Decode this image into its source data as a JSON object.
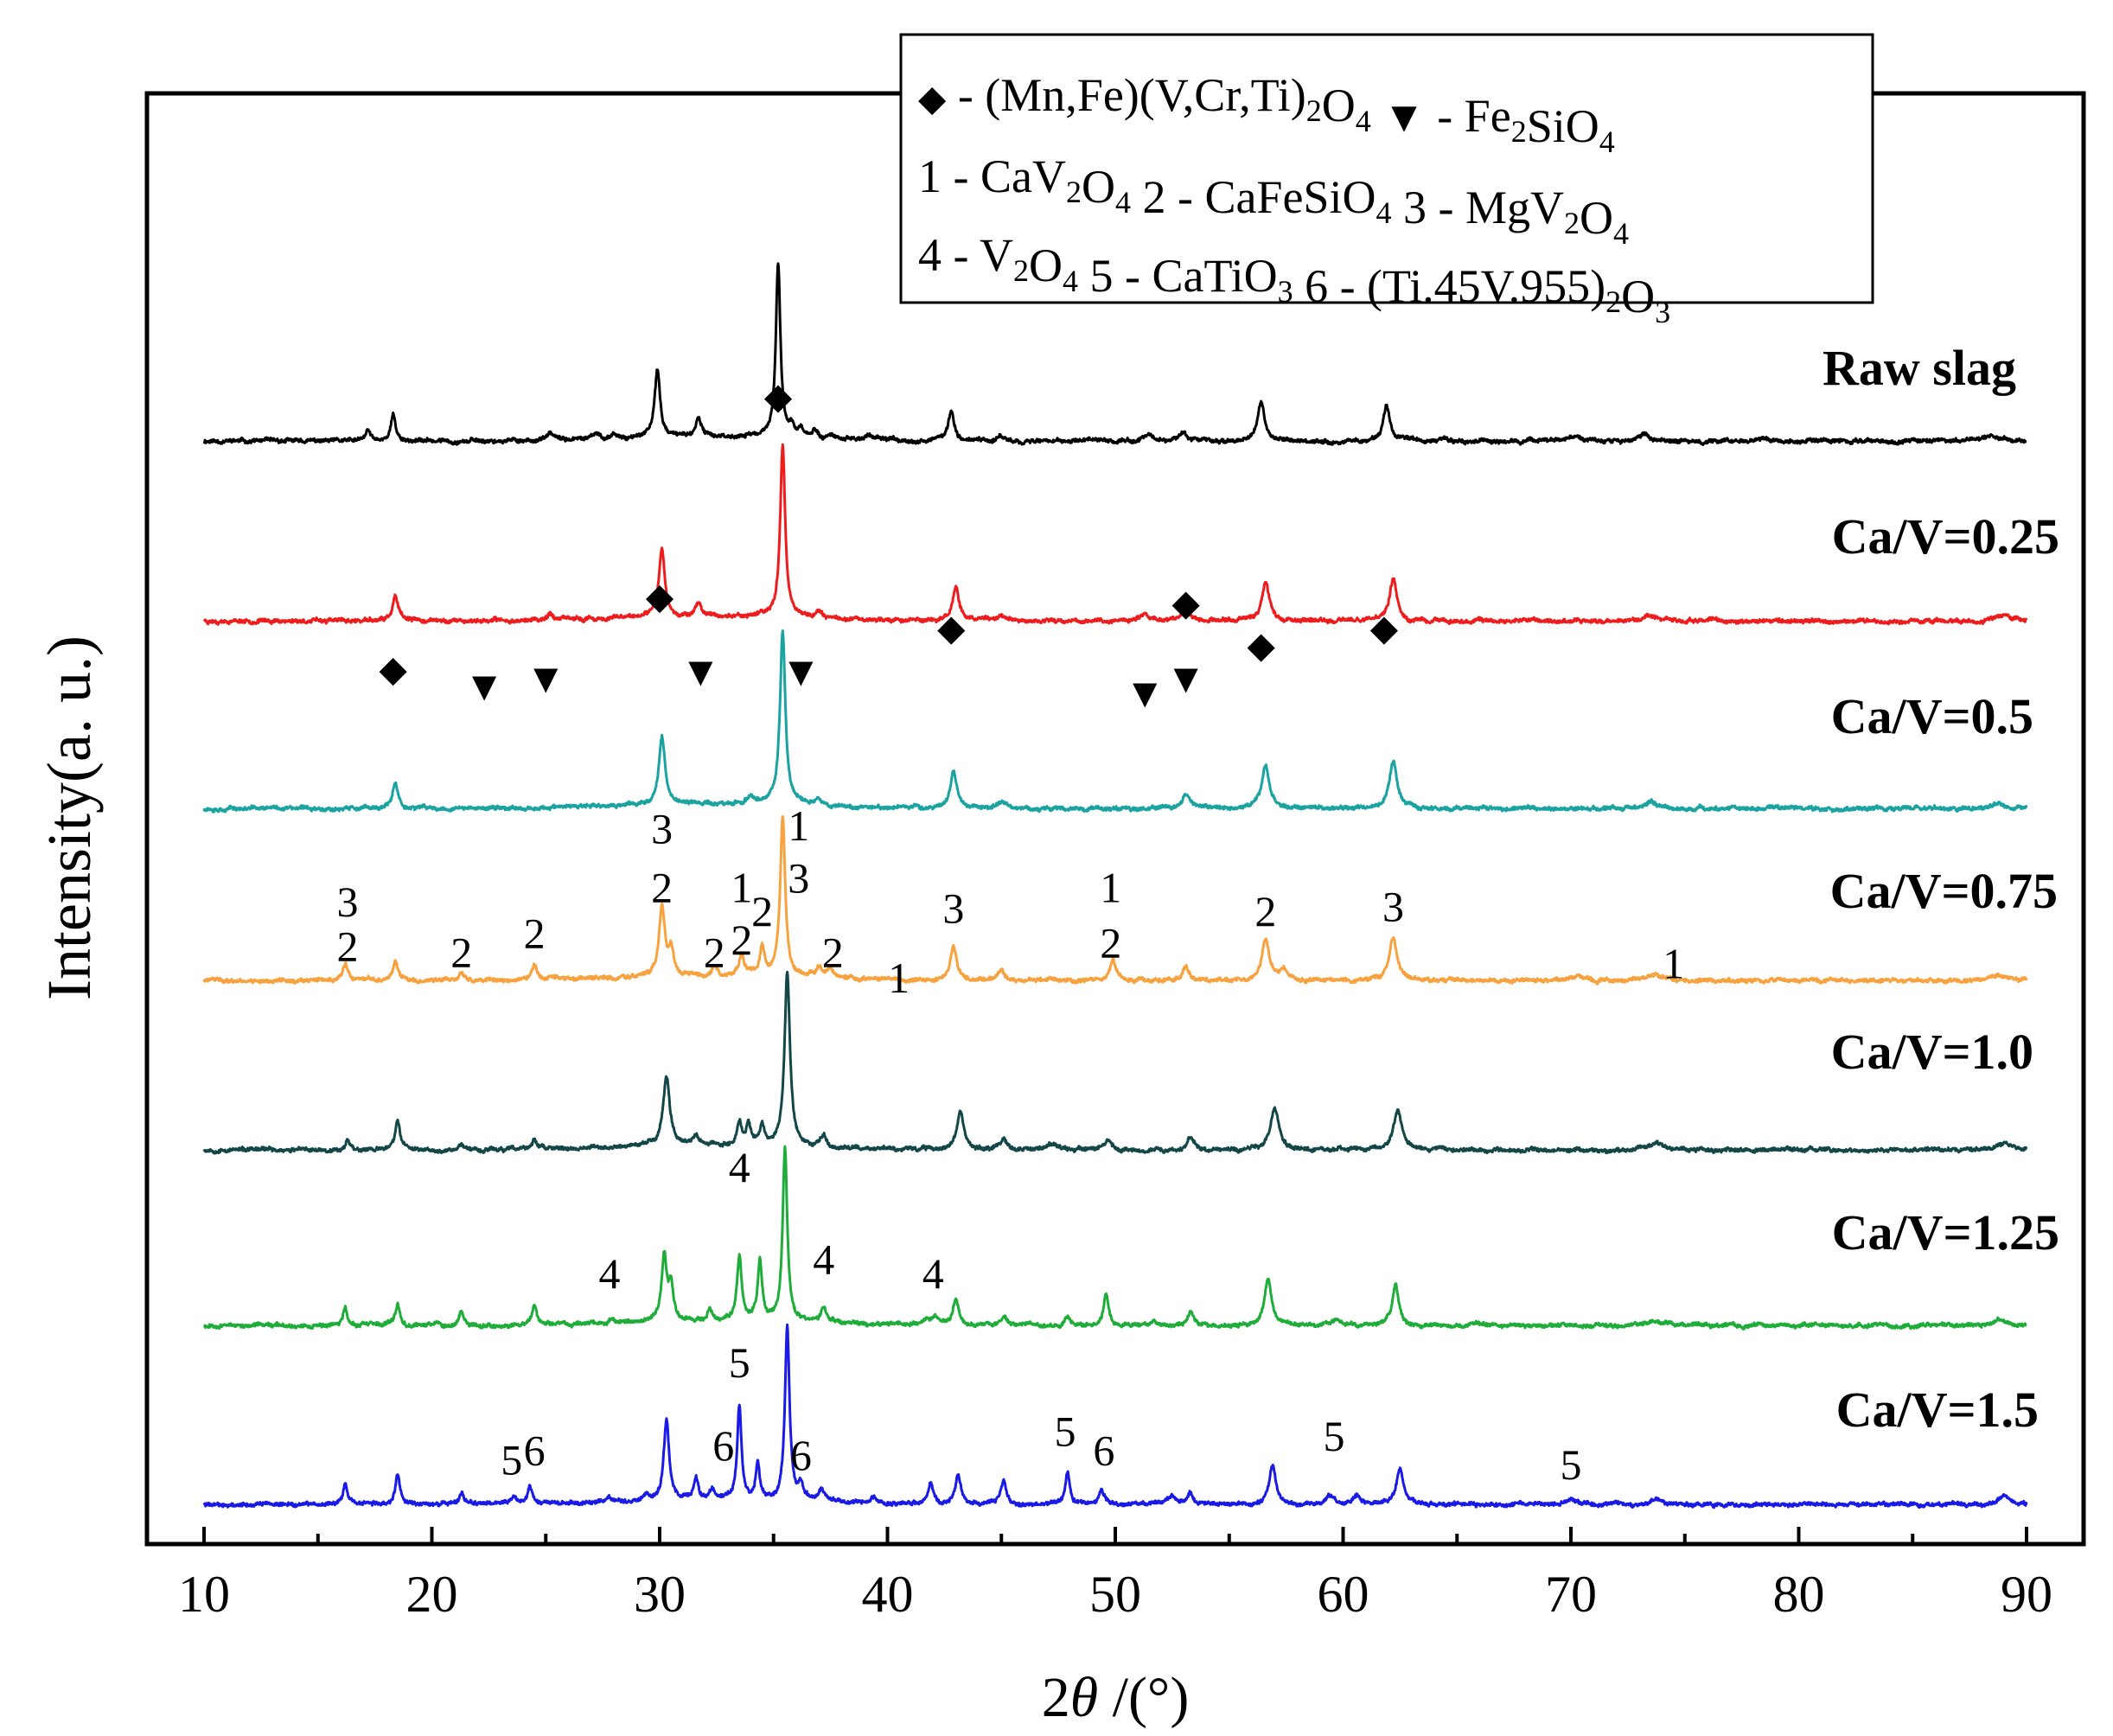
{
  "chart_data": {
    "type": "line",
    "xlabel_prefix": "2",
    "xlabel_theta": "θ",
    "xlabel_suffix": " /(°)",
    "ylabel": "Intensity(a. u.)",
    "xlim": [
      10,
      90
    ],
    "x_ticks": [
      "10",
      "20",
      "30",
      "40",
      "50",
      "60",
      "70",
      "80",
      "90"
    ],
    "legend": {
      "lines": [
        [
          {
            "sym": "◆",
            "t": " - (Mn,Fe)(V,Cr,Ti)"
          },
          {
            "sub": "2"
          },
          {
            "t": "O"
          },
          {
            "sub": "4"
          },
          {
            "t": " "
          },
          {
            "sym": "▼",
            "t": " -  Fe"
          },
          {
            "sub": "2"
          },
          {
            "t": "SiO"
          },
          {
            "sub": "4"
          }
        ],
        [
          {
            "t": "1 - CaV"
          },
          {
            "sub": "2"
          },
          {
            "t": "O"
          },
          {
            "sub": "4"
          },
          {
            "t": " 2 - CaFeSiO"
          },
          {
            "sub": "4"
          },
          {
            "t": " 3 - MgV"
          },
          {
            "sub": "2"
          },
          {
            "t": "O"
          },
          {
            "sub": "4"
          }
        ],
        [
          {
            "t": "4 - V"
          },
          {
            "sub": "2"
          },
          {
            "t": "O"
          },
          {
            "sub": "4"
          },
          {
            "t": "  5 - CaTiO"
          },
          {
            "sub": "3"
          },
          {
            "t": " 6 - (Ti.45V.955)"
          },
          {
            "sub": "2"
          },
          {
            "t": "O"
          },
          {
            "sub": "3"
          }
        ]
      ]
    },
    "series": [
      {
        "name": "Raw slag",
        "color": "#000000",
        "baseline_frac": 0.192,
        "noise_seed": 11,
        "peaks": [
          [
            17.2,
            12,
            0.12
          ],
          [
            18.3,
            30,
            0.13
          ],
          [
            25.2,
            8,
            0.15
          ],
          [
            27.2,
            6,
            0.15
          ],
          [
            28.0,
            6,
            0.15
          ],
          [
            29.9,
            78,
            0.14
          ],
          [
            31.7,
            20,
            0.14
          ],
          [
            35.2,
            200,
            0.12
          ],
          [
            35.8,
            12,
            0.12
          ],
          [
            36.2,
            10,
            0.12
          ],
          [
            36.8,
            8,
            0.12
          ],
          [
            37.5,
            5,
            0.15
          ],
          [
            39.2,
            5,
            0.15
          ],
          [
            42.8,
            36,
            0.15
          ],
          [
            45.0,
            5,
            0.2
          ],
          [
            51.5,
            8,
            0.25
          ],
          [
            53.0,
            12,
            0.18
          ],
          [
            56.4,
            45,
            0.17
          ],
          [
            61.9,
            43,
            0.17
          ],
          [
            70.2,
            5,
            0.3
          ],
          [
            73.2,
            9,
            0.25
          ],
          [
            88.4,
            6,
            0.3
          ]
        ]
      },
      {
        "name": "Ca/V=0.25",
        "color": "#ee1c1c",
        "baseline_frac": 0.196,
        "noise_seed": 23,
        "peaks": [
          [
            18.4,
            28,
            0.14
          ],
          [
            25.2,
            8,
            0.15
          ],
          [
            30.1,
            80,
            0.15
          ],
          [
            31.7,
            14,
            0.15
          ],
          [
            35.4,
            200,
            0.13
          ],
          [
            37.0,
            8,
            0.15
          ],
          [
            43.0,
            40,
            0.16
          ],
          [
            45.0,
            6,
            0.2
          ],
          [
            51.3,
            8,
            0.25
          ],
          [
            53.1,
            16,
            0.18
          ],
          [
            56.6,
            45,
            0.2
          ],
          [
            62.2,
            50,
            0.19
          ],
          [
            73.5,
            6,
            0.3
          ],
          [
            88.7,
            6,
            0.3
          ]
        ]
      },
      {
        "name": "Ca/V=0.5",
        "color": "#1aa3a0",
        "baseline_frac": 0.196,
        "noise_seed": 37,
        "peaks": [
          [
            18.4,
            28,
            0.14
          ],
          [
            30.1,
            80,
            0.16
          ],
          [
            34.0,
            8,
            0.15
          ],
          [
            35.4,
            200,
            0.14
          ],
          [
            37.0,
            8,
            0.15
          ],
          [
            42.9,
            42,
            0.17
          ],
          [
            45.0,
            8,
            0.2
          ],
          [
            53.1,
            16,
            0.2
          ],
          [
            56.6,
            50,
            0.2
          ],
          [
            62.2,
            54,
            0.2
          ],
          [
            73.5,
            8,
            0.3
          ],
          [
            88.7,
            6,
            0.3
          ]
        ]
      },
      {
        "name": "Ca/V=0.75",
        "color": "#f7a23e",
        "baseline_frac": 0.198,
        "noise_seed": 41,
        "peaks": [
          [
            16.2,
            18,
            0.12
          ],
          [
            18.4,
            22,
            0.13
          ],
          [
            21.3,
            8,
            0.13
          ],
          [
            24.5,
            18,
            0.13
          ],
          [
            30.1,
            82,
            0.15
          ],
          [
            30.5,
            30,
            0.13
          ],
          [
            32.4,
            12,
            0.13
          ],
          [
            33.6,
            24,
            0.12
          ],
          [
            34.5,
            32,
            0.12
          ],
          [
            35.4,
            185,
            0.13
          ],
          [
            37.0,
            12,
            0.13
          ],
          [
            37.5,
            10,
            0.13
          ],
          [
            42.9,
            40,
            0.16
          ],
          [
            45.0,
            10,
            0.18
          ],
          [
            49.9,
            24,
            0.16
          ],
          [
            53.1,
            16,
            0.18
          ],
          [
            56.6,
            48,
            0.2
          ],
          [
            57.4,
            12,
            0.16
          ],
          [
            62.2,
            50,
            0.2
          ],
          [
            70.3,
            5,
            0.3
          ],
          [
            73.6,
            7,
            0.3
          ],
          [
            88.8,
            6,
            0.3
          ]
        ]
      },
      {
        "name": "Ca/V=1.0",
        "color": "#134747",
        "baseline_frac": 0.204,
        "noise_seed": 53,
        "peaks": [
          [
            16.3,
            12,
            0.12
          ],
          [
            18.5,
            34,
            0.13
          ],
          [
            21.3,
            7,
            0.13
          ],
          [
            24.5,
            12,
            0.13
          ],
          [
            30.3,
            80,
            0.18
          ],
          [
            31.6,
            10,
            0.15
          ],
          [
            33.5,
            25,
            0.13
          ],
          [
            33.9,
            25,
            0.13
          ],
          [
            34.5,
            20,
            0.12
          ],
          [
            35.6,
            200,
            0.14
          ],
          [
            37.2,
            12,
            0.15
          ],
          [
            43.2,
            45,
            0.18
          ],
          [
            45.1,
            14,
            0.18
          ],
          [
            47.2,
            6,
            0.2
          ],
          [
            49.7,
            12,
            0.18
          ],
          [
            53.3,
            14,
            0.2
          ],
          [
            57.0,
            48,
            0.22
          ],
          [
            62.4,
            45,
            0.22
          ],
          [
            73.7,
            8,
            0.3
          ],
          [
            89.0,
            8,
            0.3
          ]
        ]
      },
      {
        "name": "Ca/V=1.25",
        "color": "#1fad3a",
        "baseline_frac": 0.196,
        "noise_seed": 67,
        "peaks": [
          [
            16.2,
            22,
            0.11
          ],
          [
            18.5,
            24,
            0.12
          ],
          [
            20.2,
            5,
            0.12
          ],
          [
            21.3,
            18,
            0.11
          ],
          [
            24.5,
            22,
            0.12
          ],
          [
            27.9,
            6,
            0.15
          ],
          [
            30.2,
            75,
            0.14
          ],
          [
            30.5,
            40,
            0.12
          ],
          [
            32.2,
            12,
            0.13
          ],
          [
            33.5,
            75,
            0.12
          ],
          [
            34.4,
            70,
            0.11
          ],
          [
            35.5,
            200,
            0.12
          ],
          [
            37.2,
            18,
            0.15
          ],
          [
            41.7,
            6,
            0.15
          ],
          [
            42.1,
            8,
            0.15
          ],
          [
            43.0,
            30,
            0.15
          ],
          [
            45.1,
            10,
            0.17
          ],
          [
            47.9,
            10,
            0.13
          ],
          [
            49.6,
            36,
            0.14
          ],
          [
            51.7,
            6,
            0.15
          ],
          [
            53.3,
            15,
            0.16
          ],
          [
            56.7,
            52,
            0.18
          ],
          [
            59.7,
            8,
            0.2
          ],
          [
            62.3,
            46,
            0.18
          ],
          [
            73.6,
            6,
            0.3
          ],
          [
            88.8,
            6,
            0.3
          ]
        ]
      },
      {
        "name": "Ca/V=1.5",
        "color": "#1a1ae6",
        "baseline_frac": 0.196,
        "noise_seed": 79,
        "peaks": [
          [
            16.2,
            25,
            0.11
          ],
          [
            18.5,
            35,
            0.12
          ],
          [
            21.3,
            14,
            0.11
          ],
          [
            23.6,
            8,
            0.12
          ],
          [
            24.3,
            20,
            0.12
          ],
          [
            27.8,
            5,
            0.15
          ],
          [
            29.4,
            7,
            0.14
          ],
          [
            30.3,
            95,
            0.14
          ],
          [
            31.6,
            25,
            0.12
          ],
          [
            32.3,
            12,
            0.13
          ],
          [
            33.5,
            110,
            0.11
          ],
          [
            34.3,
            40,
            0.11
          ],
          [
            35.6,
            200,
            0.12
          ],
          [
            36.2,
            15,
            0.13
          ],
          [
            37.1,
            14,
            0.15
          ],
          [
            39.4,
            8,
            0.14
          ],
          [
            41.9,
            22,
            0.13
          ],
          [
            43.1,
            35,
            0.15
          ],
          [
            45.1,
            28,
            0.14
          ],
          [
            47.9,
            38,
            0.12
          ],
          [
            49.4,
            18,
            0.15
          ],
          [
            52.5,
            8,
            0.18
          ],
          [
            53.3,
            12,
            0.18
          ],
          [
            56.9,
            45,
            0.18
          ],
          [
            59.4,
            10,
            0.18
          ],
          [
            60.6,
            10,
            0.2
          ],
          [
            62.5,
            42,
            0.18
          ],
          [
            70.0,
            7,
            0.2
          ],
          [
            73.8,
            6,
            0.3
          ],
          [
            89.0,
            10,
            0.3
          ]
        ]
      }
    ],
    "markers": [
      {
        "sym": "◆",
        "x": 18.3,
        "y": 0.705
      },
      {
        "sym": "▼",
        "x": 22.3,
        "y": 0.727
      },
      {
        "sym": "▼",
        "x": 25.0,
        "y": 0.718
      },
      {
        "sym": "◆",
        "x": 30.0,
        "y": 0.622
      },
      {
        "sym": "▼",
        "x": 31.8,
        "y": 0.71
      },
      {
        "sym": "◆",
        "x": 35.2,
        "y": 0.392
      },
      {
        "sym": "▼",
        "x": 36.2,
        "y": 0.71
      },
      {
        "sym": "◆",
        "x": 42.8,
        "y": 0.658
      },
      {
        "sym": "▼",
        "x": 51.3,
        "y": 0.735
      },
      {
        "sym": "◆",
        "x": 53.1,
        "y": 0.629
      },
      {
        "sym": "▼",
        "x": 53.1,
        "y": 0.718
      },
      {
        "sym": "◆",
        "x": 56.4,
        "y": 0.678
      },
      {
        "sym": "◆",
        "x": 61.8,
        "y": 0.658
      }
    ],
    "peak_labels": [
      {
        "t": "3",
        "x": 16.3,
        "y": 1.035
      },
      {
        "t": "2",
        "x": 16.3,
        "y": 1.082
      },
      {
        "t": "2",
        "x": 21.3,
        "y": 1.088
      },
      {
        "t": "2",
        "x": 24.5,
        "y": 1.068
      },
      {
        "t": "3",
        "x": 30.1,
        "y": 0.958
      },
      {
        "t": "2",
        "x": 30.1,
        "y": 1.02
      },
      {
        "t": "2",
        "x": 32.4,
        "y": 1.088
      },
      {
        "t": "1",
        "x": 33.6,
        "y": 1.02
      },
      {
        "t": "2",
        "x": 33.6,
        "y": 1.075
      },
      {
        "t": "2",
        "x": 34.5,
        "y": 1.045
      },
      {
        "t": "1",
        "x": 36.1,
        "y": 0.955
      },
      {
        "t": "3",
        "x": 36.1,
        "y": 1.01
      },
      {
        "t": "2",
        "x": 37.6,
        "y": 1.088
      },
      {
        "t": "1",
        "x": 40.5,
        "y": 1.115
      },
      {
        "t": "3",
        "x": 42.9,
        "y": 1.042
      },
      {
        "t": "1",
        "x": 49.8,
        "y": 1.02
      },
      {
        "t": "2",
        "x": 49.8,
        "y": 1.078
      },
      {
        "t": "2",
        "x": 56.6,
        "y": 1.045
      },
      {
        "t": "3",
        "x": 62.2,
        "y": 1.04
      },
      {
        "t": "1",
        "x": 74.5,
        "y": 1.1
      },
      {
        "t": "4",
        "x": 27.8,
        "y": 1.12
      },
      {
        "t": "4",
        "x": 33.5,
        "y": 1.008
      },
      {
        "t": "4",
        "x": 37.2,
        "y": 1.105
      },
      {
        "t": "4",
        "x": 42.0,
        "y": 1.12
      },
      {
        "t": "5",
        "x": 33.5,
        "y": 1.015
      },
      {
        "t": "5",
        "x": 23.5,
        "y": 1.145
      },
      {
        "t": "6",
        "x": 24.5,
        "y": 1.135
      },
      {
        "t": "6",
        "x": 32.8,
        "y": 1.13
      },
      {
        "t": "6",
        "x": 36.2,
        "y": 1.14
      },
      {
        "t": "5",
        "x": 47.8,
        "y": 1.115
      },
      {
        "t": "6",
        "x": 49.5,
        "y": 1.135
      },
      {
        "t": "5",
        "x": 59.6,
        "y": 1.12
      },
      {
        "t": "5",
        "x": 70.0,
        "y": 1.15
      }
    ]
  }
}
